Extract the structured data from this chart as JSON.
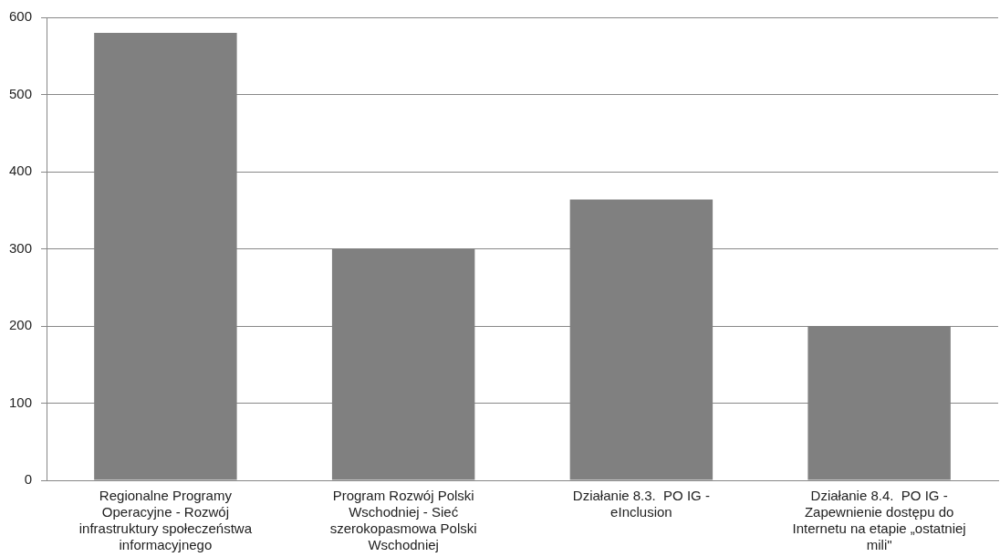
{
  "chart_data": {
    "type": "bar",
    "categories": [
      "Regionalne Programy Operacyjne - Rozwój infrastruktury społeczeństwa informacyjnego",
      "Program Rozwój Polski Wschodniej - Sieć szerokopasmowa Polski Wschodniej",
      "Działanie 8.3.  PO IG - eInclusion",
      "Działanie 8.4.  PO IG - Zapewnienie dostępu do Internetu na etapie „ostatniej mili\""
    ],
    "values": [
      580,
      300,
      364,
      200
    ],
    "color": "#808080",
    "ylim": [
      0,
      600
    ],
    "yticks": [
      0,
      100,
      200,
      300,
      400,
      500,
      600
    ],
    "grid": "y",
    "legend": false
  }
}
